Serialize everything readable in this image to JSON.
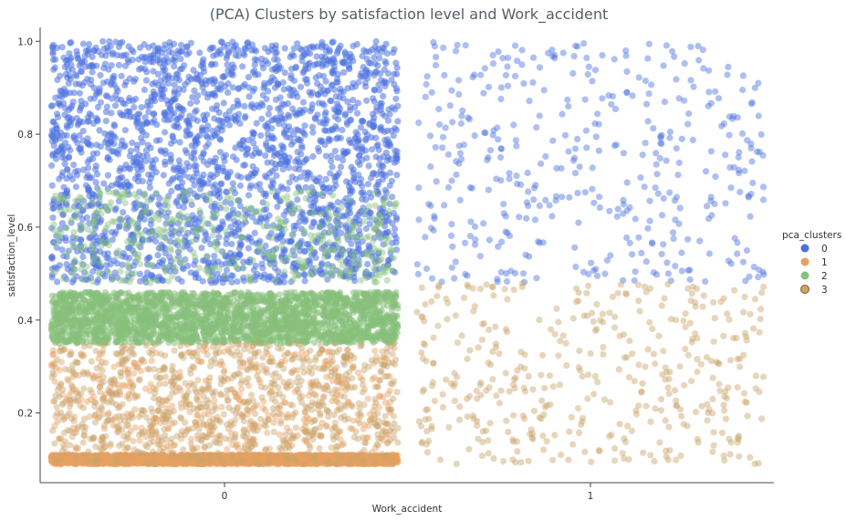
{
  "chart_data": {
    "type": "scatter",
    "title": "(PCA) Clusters by satisfaction level and Work_accident",
    "xlabel": "Work_accident",
    "ylabel": "satisfaction_level",
    "x_categories": [
      "0",
      "1"
    ],
    "ylim": [
      0.05,
      1.03
    ],
    "y_ticks": [
      "0.2",
      "0.4",
      "0.6",
      "0.8",
      "1.0"
    ],
    "jitter": true,
    "grid": false,
    "legend": {
      "title": "pca_clusters",
      "placement": "right",
      "entries": [
        {
          "label": "0",
          "color": "#4c72e0"
        },
        {
          "label": "1",
          "color": "#e8a060"
        },
        {
          "label": "2",
          "color": "#86c07a"
        },
        {
          "label": "3",
          "color": "#c9a36a"
        }
      ]
    },
    "series": [
      {
        "name": "0",
        "color": "#4c72e0",
        "x": "0",
        "y_range": [
          0.48,
          1.0
        ],
        "density": "very high"
      },
      {
        "name": "0",
        "color": "#4c72e0",
        "x": "1",
        "y_range": [
          0.48,
          1.0
        ],
        "density": "medium"
      },
      {
        "name": "1",
        "color": "#e8a060",
        "x": "0",
        "y_range": [
          0.09,
          0.11
        ],
        "density": "very high"
      },
      {
        "name": "1",
        "color": "#e8a060",
        "x": "0",
        "y_range": [
          0.12,
          0.34
        ],
        "density": "medium"
      },
      {
        "name": "2",
        "color": "#86c07a",
        "x": "0",
        "y_range": [
          0.35,
          0.46
        ],
        "density": "very high"
      },
      {
        "name": "2",
        "color": "#86c07a",
        "x": "0",
        "y_range": [
          0.48,
          0.68
        ],
        "density": "medium"
      },
      {
        "name": "3",
        "color": "#c9a36a",
        "x": "0",
        "y_range": [
          0.09,
          0.35
        ],
        "density": "high"
      },
      {
        "name": "3",
        "color": "#c9a36a",
        "x": "1",
        "y_range": [
          0.09,
          0.48
        ],
        "density": "medium"
      }
    ]
  }
}
